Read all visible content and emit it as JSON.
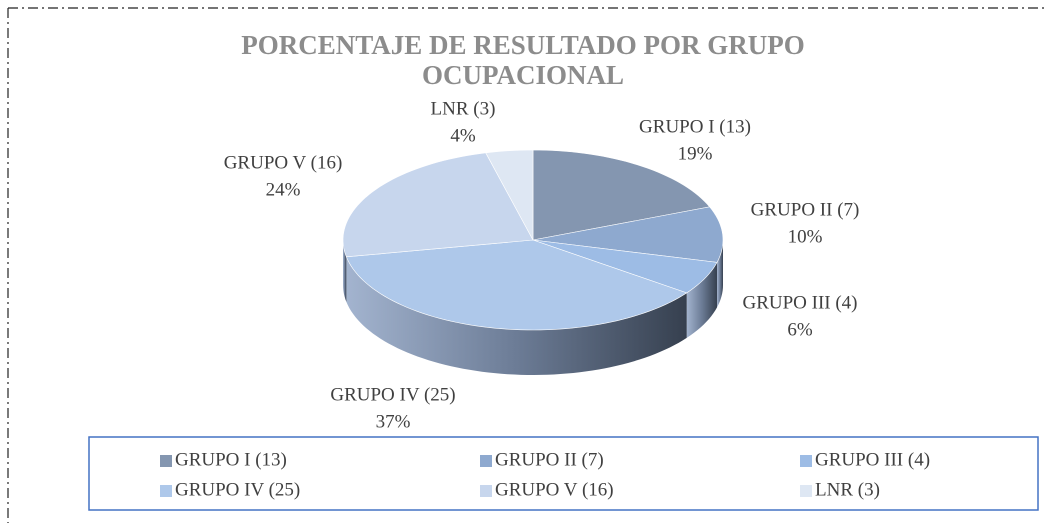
{
  "chart_data": {
    "type": "pie3d",
    "title": "PORCENTAJE DE RESULTADO POR GRUPO OCUPACIONAL",
    "categories": [
      "GRUPO I (13)",
      "GRUPO II (7)",
      "GRUPO III (4)",
      "GRUPO IV (25)",
      "GRUPO V (16)",
      "LNR (3)"
    ],
    "values": [
      19,
      10,
      6,
      37,
      24,
      4
    ],
    "value_labels": [
      "19%",
      "10%",
      "6%",
      "37%",
      "24%",
      "4%"
    ],
    "colors": [
      "#8496b0",
      "#8ea9cf",
      "#9dbce5",
      "#aec8ea",
      "#c7d6ed",
      "#dee7f3"
    ],
    "legend": "bottom"
  }
}
